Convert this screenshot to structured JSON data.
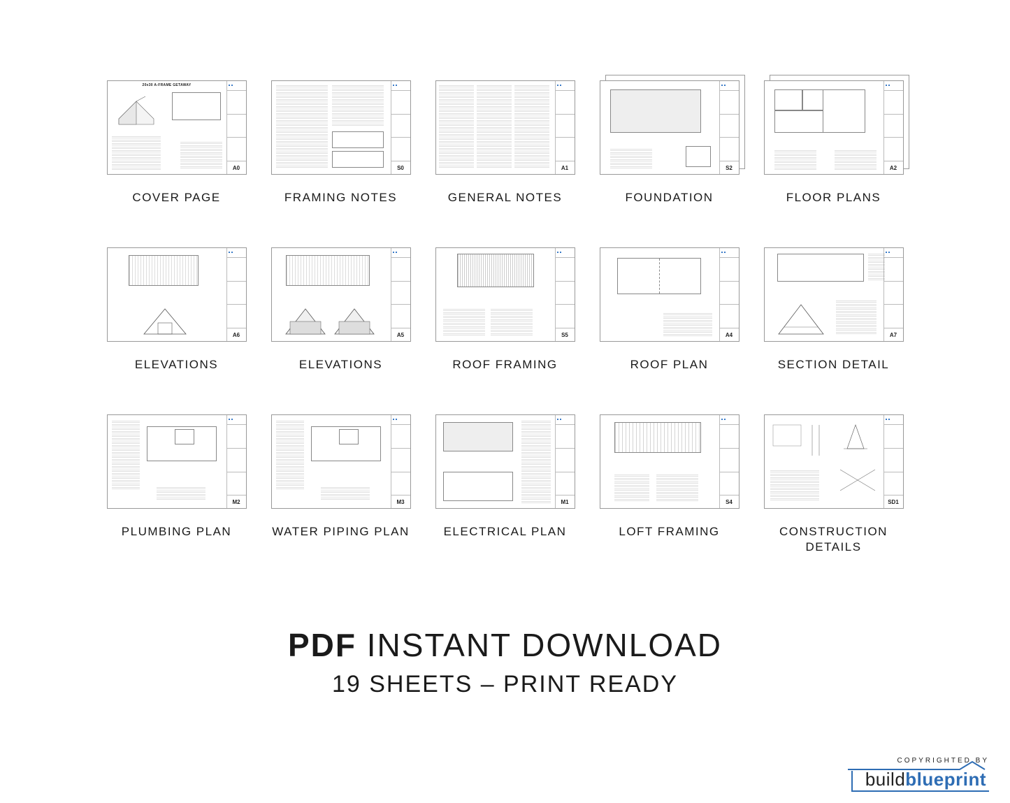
{
  "project_title": "20x30 A-FRAME GETAWAY",
  "sheets": [
    {
      "label": "COVER PAGE",
      "code": "A0",
      "stacked": false,
      "style": "cover"
    },
    {
      "label": "FRAMING NOTES",
      "code": "S0",
      "stacked": false,
      "style": "notes2col"
    },
    {
      "label": "GENERAL NOTES",
      "code": "A1",
      "stacked": false,
      "style": "notes3col"
    },
    {
      "label": "FOUNDATION",
      "code": "S2",
      "stacked": true,
      "style": "plan_rect"
    },
    {
      "label": "FLOOR PLANS",
      "code": "A2",
      "stacked": true,
      "style": "plan_rooms"
    },
    {
      "label": "ELEVATIONS",
      "code": "A6",
      "stacked": false,
      "style": "elev_single"
    },
    {
      "label": "ELEVATIONS",
      "code": "A5",
      "stacked": false,
      "style": "elev_double"
    },
    {
      "label": "ROOF FRAMING",
      "code": "S5",
      "stacked": false,
      "style": "roof_framing"
    },
    {
      "label": "ROOF PLAN",
      "code": "A4",
      "stacked": false,
      "style": "roof_plan"
    },
    {
      "label": "SECTION DETAIL",
      "code": "A7",
      "stacked": false,
      "style": "section"
    },
    {
      "label": "PLUMBING PLAN",
      "code": "M2",
      "stacked": false,
      "style": "mep"
    },
    {
      "label": "WATER PIPING PLAN",
      "code": "M3",
      "stacked": false,
      "style": "mep"
    },
    {
      "label": "ELECTRICAL PLAN",
      "code": "M1",
      "stacked": false,
      "style": "electrical"
    },
    {
      "label": "LOFT FRAMING",
      "code": "S4",
      "stacked": false,
      "style": "loft"
    },
    {
      "label": "CONSTRUCTION DETAILS",
      "code": "SD1",
      "stacked": false,
      "style": "details"
    }
  ],
  "headline": {
    "bold": "PDF",
    "rest": "INSTANT DOWNLOAD",
    "sub": "19 SHEETS – PRINT READY"
  },
  "brand": {
    "copyright": "COPYRIGHTED BY",
    "part1": "build",
    "part2": "blueprint"
  },
  "colors": {
    "text": "#1a1a1a",
    "border": "#999999",
    "brand_blue": "#2e6db4"
  }
}
